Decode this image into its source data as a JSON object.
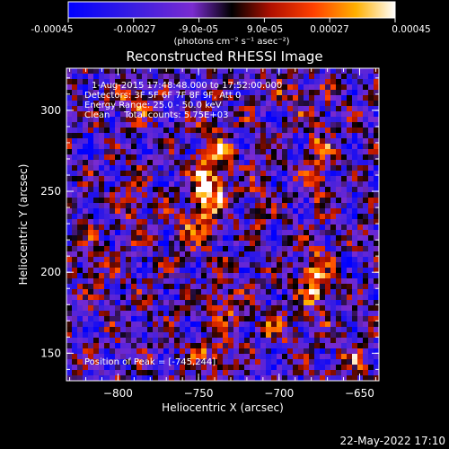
{
  "colorbar": {
    "ticks": [
      "-0.00045",
      "-0.00027",
      "-9.0e-05",
      "9.0e-05",
      "0.00027",
      "0.00045"
    ],
    "unit_label": "(photons cm⁻² s⁻¹ asec⁻²)",
    "vmin": -0.00045,
    "vmax": 0.00045
  },
  "footer": {
    "timestamp": "22-May-2022 17:10"
  },
  "chart_data": {
    "type": "heatmap",
    "title": "Reconstructed RHESSI Image",
    "xlabel": "Heliocentric X (arcsec)",
    "ylabel": "Heliocentric Y (arcsec)",
    "xlim": [
      -832,
      -638
    ],
    "ylim": [
      133,
      326
    ],
    "xticks": [
      -800,
      -750,
      -700,
      -650
    ],
    "yticks": [
      150,
      200,
      250,
      300
    ],
    "annotations": {
      "time_range": "1-Aug-2015 17:48:48.000 to 17:52:00.000",
      "detectors": "Detectors: 3F 5F 6F 7F 8F 9F, Att 0",
      "energy_range": "Energy Range: 25.0 - 50.0 keV",
      "clean_line": "Clean     Total counts: 5.75E+03",
      "peak_text": "Position of Peak = [-745,244]"
    },
    "peak": [
      -745,
      244
    ],
    "bright_sources": [
      {
        "x": -745,
        "y": 247,
        "sigma_x": 7,
        "sigma_y": 10,
        "amp": 1.0
      },
      {
        "x": -741,
        "y": 272,
        "sigma_x": 8,
        "sigma_y": 12,
        "amp": 0.65
      },
      {
        "x": -753,
        "y": 224,
        "sigma_x": 9,
        "sigma_y": 8,
        "amp": 0.45
      },
      {
        "x": -678,
        "y": 196,
        "sigma_x": 6,
        "sigma_y": 14,
        "amp": 0.8
      },
      {
        "x": -675,
        "y": 270,
        "sigma_x": 5,
        "sigma_y": 18,
        "amp": 0.55
      },
      {
        "x": -712,
        "y": 240,
        "sigma_x": 4,
        "sigma_y": 16,
        "amp": 0.45
      },
      {
        "x": -732,
        "y": 180,
        "sigma_x": 7,
        "sigma_y": 9,
        "amp": 0.5
      },
      {
        "x": -740,
        "y": 150,
        "sigma_x": 10,
        "sigma_y": 7,
        "amp": 0.45
      },
      {
        "x": -790,
        "y": 305,
        "sigma_x": 10,
        "sigma_y": 6,
        "amp": 0.45
      },
      {
        "x": -815,
        "y": 205,
        "sigma_x": 5,
        "sigma_y": 12,
        "amp": 0.4
      },
      {
        "x": -790,
        "y": 240,
        "sigma_x": 6,
        "sigma_y": 14,
        "amp": 0.35
      },
      {
        "x": -655,
        "y": 145,
        "sigma_x": 8,
        "sigma_y": 7,
        "amp": 0.4
      },
      {
        "x": -700,
        "y": 165,
        "sigma_x": 8,
        "sigma_y": 6,
        "amp": 0.4
      },
      {
        "x": -690,
        "y": 310,
        "sigma_x": 10,
        "sigma_y": 7,
        "amp": 0.4
      }
    ]
  }
}
